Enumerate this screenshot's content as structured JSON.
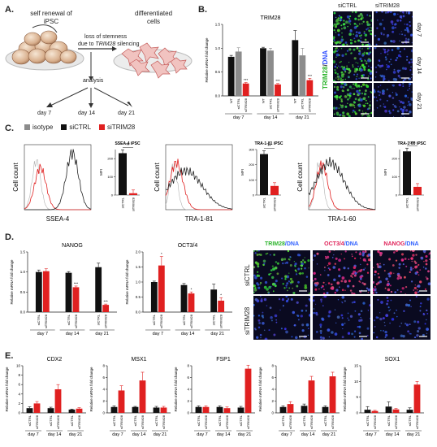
{
  "panel_a": {
    "label": "A.",
    "text_self_renewal": "self renewal of",
    "text_ipsc": "iPSC",
    "text_differentiated": "differentiated",
    "text_cells": "cells",
    "text_loss": "loss of stemness",
    "text_due_to": "due to",
    "text_gene": "TRIM28",
    "text_silencing": "silencing",
    "text_analysis": "analysis",
    "day7": "day 7",
    "day14": "day 14",
    "day21": "day 21"
  },
  "panel_b": {
    "label": "B.",
    "title": "TRIM28",
    "ylabel": "Relative mRNA fold change",
    "group_labels": [
      "day 7",
      "day 14",
      "day 21"
    ],
    "bar_labels": [
      "WT",
      "siCTRL",
      "siTRIM28"
    ],
    "values": [
      [
        0.82,
        0.93,
        0.26
      ],
      [
        1.0,
        0.95,
        0.24
      ],
      [
        1.17,
        0.85,
        0.33
      ]
    ],
    "errors": [
      [
        0.03,
        0.08,
        0.02
      ],
      [
        0.02,
        0.05,
        0.02
      ],
      [
        0.2,
        0.15,
        0.04
      ]
    ],
    "sig": [
      "***",
      "***",
      "***"
    ],
    "colors": [
      "#111111",
      "#8c8c8c",
      "#e02020"
    ],
    "ylim": [
      0,
      1.5
    ],
    "yticks": [
      "0.0",
      "0.5",
      "1.0",
      "1.5"
    ],
    "col_siCTRL": "siCTRL",
    "col_siTRIM28": "siTRIM28",
    "row_labels": [
      "day 7",
      "day 14",
      "day 21"
    ],
    "stain_trim": "TRIM28",
    "stain_sep": "/",
    "stain_dna": "DNA"
  },
  "panel_c": {
    "label": "C.",
    "legend": [
      "isotype",
      "siCTRL",
      "siTRIM28"
    ],
    "legend_colors": [
      "#8c8c8c",
      "#111111",
      "#e02020"
    ],
    "ylabel": "Cell count",
    "mfi_label": "MFI",
    "plots": [
      {
        "marker": "SSEA-4",
        "bar_title": "SSEA-4 iPSC",
        "values": [
          230,
          10
        ],
        "ymax": 250,
        "yticks": [
          "0",
          "100",
          "200"
        ],
        "sig": "**"
      },
      {
        "marker": "TRA-1-81",
        "bar_title": "TRA-1-81 iPSC",
        "values": [
          270,
          60
        ],
        "ymax": 300,
        "yticks": [
          "0",
          "100",
          "200",
          "300"
        ],
        "sig": "**"
      },
      {
        "marker": "TRA-1-60",
        "bar_title": "TRA-1-60 iPSC",
        "values": [
          240,
          45
        ],
        "ymax": 250,
        "yticks": [
          "0",
          "100",
          "200"
        ],
        "sig": "****"
      }
    ],
    "bar_labels": [
      "siCTRL",
      "siTRIM28"
    ]
  },
  "panel_d": {
    "label": "D.",
    "ylabel": "Relative mRNA fold change",
    "group_labels": [
      "day 7",
      "day 14",
      "day 21"
    ],
    "bar_labels": [
      "siCTRL",
      "siTRIM28"
    ],
    "charts": [
      {
        "title": "NANOG",
        "ylim": [
          0,
          1.5
        ],
        "yticks": [
          "0.0",
          "0.5",
          "1.0",
          "1.5"
        ],
        "values": [
          [
            1.0,
            1.02
          ],
          [
            0.98,
            0.62
          ],
          [
            1.12,
            0.18
          ]
        ],
        "errors": [
          [
            0.05,
            0.06
          ],
          [
            0.03,
            0.03
          ],
          [
            0.1,
            0.02
          ]
        ],
        "sig": [
          "",
          "***",
          "***"
        ]
      },
      {
        "title": "OCT3/4",
        "ylim": [
          0,
          2.0
        ],
        "yticks": [
          "0.0",
          "0.5",
          "1.0",
          "1.5",
          "2.0"
        ],
        "values": [
          [
            1.0,
            1.55
          ],
          [
            0.9,
            0.62
          ],
          [
            0.75,
            0.38
          ]
        ],
        "errors": [
          [
            0.03,
            0.3
          ],
          [
            0.05,
            0.05
          ],
          [
            0.18,
            0.1
          ]
        ],
        "sig": [
          "*",
          "*",
          "*"
        ]
      }
    ],
    "stain_headers": [
      [
        "TRIM28",
        "/DNA"
      ],
      [
        "OCT3/4",
        "/DNA"
      ],
      [
        "NANOG",
        "/DNA"
      ]
    ],
    "row_labels": [
      "siCTRL",
      "siTRIM28"
    ]
  },
  "panel_e": {
    "label": "E.",
    "ylabel": "Relative mRNA fold change",
    "group_labels": [
      "day 7",
      "day 14",
      "day 21"
    ],
    "bar_labels": [
      "siCTRL",
      "siTRIM28"
    ],
    "charts": [
      {
        "title": "CDX2",
        "yticks": [
          "0",
          "2",
          "4",
          "6",
          "8",
          "10"
        ],
        "ylim": [
          0,
          10
        ],
        "values": [
          [
            1.0,
            2.0
          ],
          [
            1.0,
            5.0
          ],
          [
            0.7,
            0.9
          ]
        ],
        "errors": [
          [
            0.3,
            0.4
          ],
          [
            0.2,
            1.0
          ],
          [
            0.1,
            0.2
          ]
        ]
      },
      {
        "title": "MSX1",
        "yticks": [
          "0",
          "2",
          "4",
          "6",
          "8"
        ],
        "ylim": [
          0,
          8
        ],
        "values": [
          [
            1.0,
            3.8
          ],
          [
            1.0,
            5.5
          ],
          [
            0.9,
            0.9
          ]
        ],
        "errors": [
          [
            0.2,
            0.8
          ],
          [
            0.1,
            1.4
          ],
          [
            0.2,
            0.2
          ]
        ]
      },
      {
        "title": "FSP1",
        "yticks": [
          "0",
          "2",
          "4",
          "6",
          "8"
        ],
        "ylim": [
          0,
          8
        ],
        "values": [
          [
            1.0,
            1.0
          ],
          [
            1.0,
            0.8
          ],
          [
            0.9,
            7.5
          ]
        ],
        "errors": [
          [
            0.2,
            0.2
          ],
          [
            0.2,
            0.2
          ],
          [
            0.2,
            0.6
          ]
        ]
      },
      {
        "title": "PAX6",
        "yticks": [
          "0",
          "2",
          "4",
          "6",
          "8"
        ],
        "ylim": [
          0,
          8
        ],
        "values": [
          [
            1.0,
            1.5
          ],
          [
            1.2,
            5.5
          ],
          [
            1.0,
            6.2
          ]
        ],
        "errors": [
          [
            0.2,
            0.4
          ],
          [
            0.3,
            0.7
          ],
          [
            0.2,
            0.7
          ]
        ]
      },
      {
        "title": "SOX1",
        "yticks": [
          "0",
          "5",
          "10",
          "15"
        ],
        "ylim": [
          0,
          15
        ],
        "values": [
          [
            1.0,
            0.6
          ],
          [
            2.0,
            1.1
          ],
          [
            1.0,
            9.0
          ]
        ],
        "errors": [
          [
            1.0,
            0.2
          ],
          [
            1.5,
            0.3
          ],
          [
            0.6,
            1.0
          ]
        ]
      }
    ]
  }
}
